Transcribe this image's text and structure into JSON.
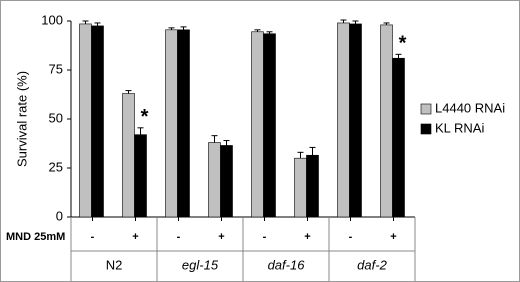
{
  "chart_data": {
    "type": "bar",
    "y_label": "Survival rate (%)",
    "row_label": "MND 25mM",
    "categories": [
      "-",
      "+",
      "-",
      "+",
      "-",
      "+",
      "-",
      "+"
    ],
    "groups": [
      "N2",
      "egl-15",
      "daf-16",
      "daf-2"
    ],
    "series": [
      {
        "name": "L4440 RNAi",
        "color": "#c0c0c0",
        "values": [
          98.5,
          63,
          95.5,
          38,
          94.5,
          30,
          99,
          98
        ],
        "errors": [
          1.5,
          1.5,
          1,
          3.5,
          1,
          3,
          1.5,
          1
        ],
        "markers": [
          null,
          null,
          null,
          null,
          null,
          null,
          null,
          null
        ]
      },
      {
        "name": "KL RNAi",
        "color": "#000000",
        "values": [
          97.5,
          42,
          95.5,
          36.5,
          93.5,
          31.5,
          98.5,
          81
        ],
        "errors": [
          1.5,
          3.5,
          1.5,
          2.5,
          1,
          4,
          1.5,
          2
        ],
        "markers": [
          null,
          "*",
          null,
          null,
          null,
          null,
          null,
          "*"
        ]
      }
    ],
    "ylim": [
      0,
      100
    ],
    "yticks": [
      0,
      25,
      50,
      75,
      100
    ],
    "legend": "right"
  }
}
